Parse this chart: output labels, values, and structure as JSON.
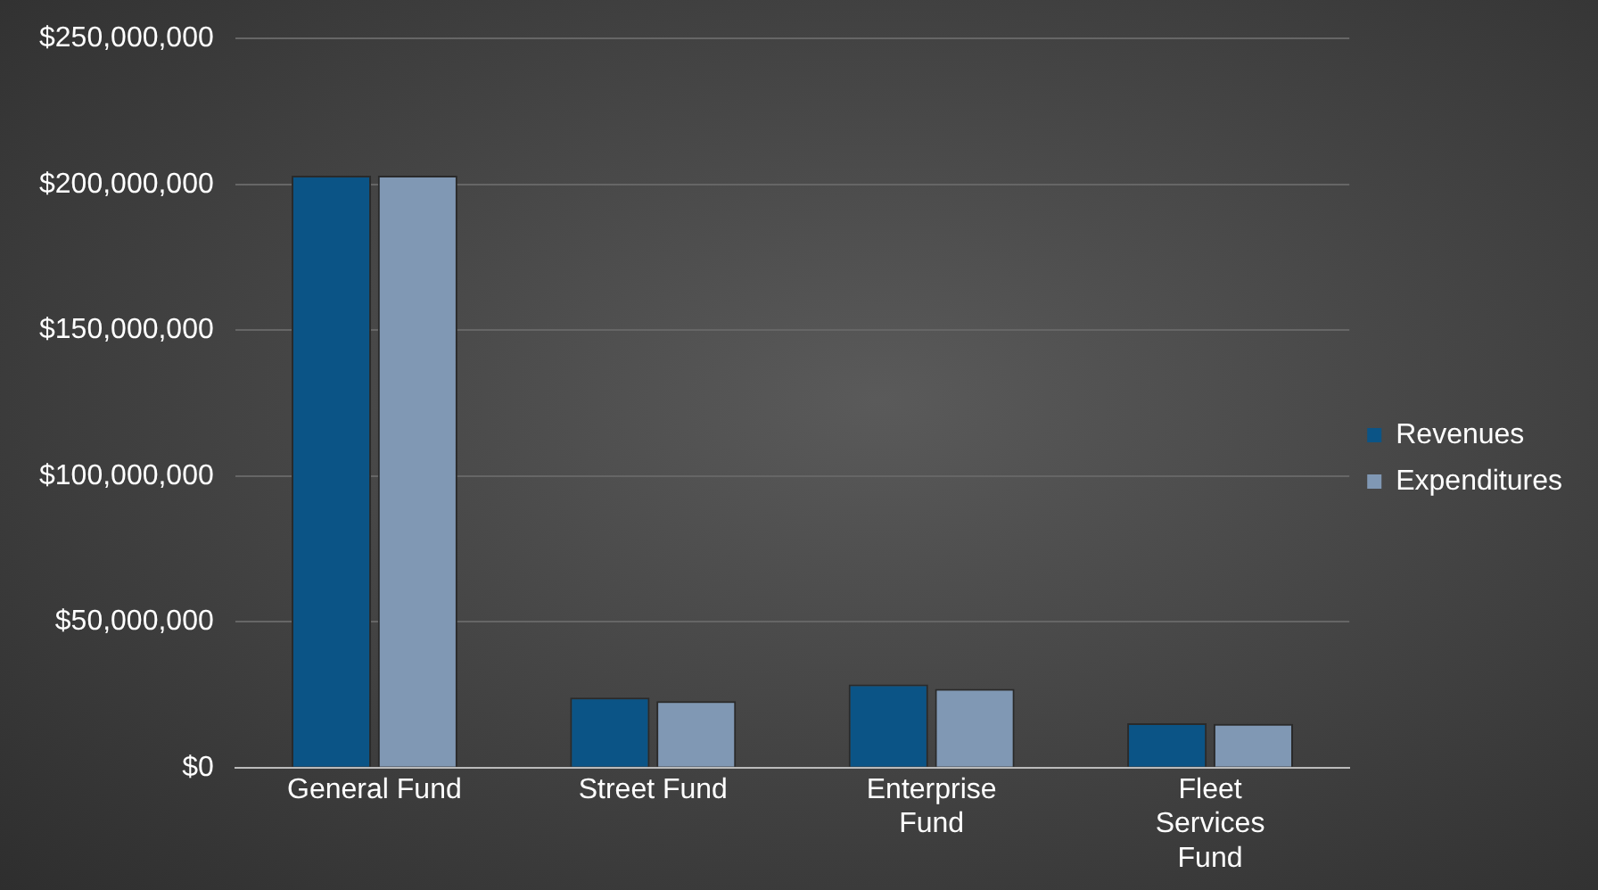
{
  "chart_data": {
    "type": "bar",
    "categories": [
      "General Fund",
      "Street Fund",
      "Enterprise Fund",
      "Fleet Services Fund"
    ],
    "series": [
      {
        "name": "Revenues",
        "color": "#0b5486",
        "values": [
          203000000,
          24000000,
          28500000,
          15200000
        ]
      },
      {
        "name": "Expenditures",
        "color": "#8098b4",
        "values": [
          203000000,
          22800000,
          27000000,
          15000000
        ]
      }
    ],
    "ylim": [
      0,
      250000000
    ],
    "yticks": [
      {
        "value": 0,
        "label": "$0"
      },
      {
        "value": 50000000,
        "label": "$50,000,000"
      },
      {
        "value": 100000000,
        "label": "$100,000,000"
      },
      {
        "value": 150000000,
        "label": "$150,000,000"
      },
      {
        "value": 200000000,
        "label": "$200,000,000"
      },
      {
        "value": 250000000,
        "label": "$250,000,000"
      }
    ],
    "grid": "y",
    "legend": "right"
  }
}
